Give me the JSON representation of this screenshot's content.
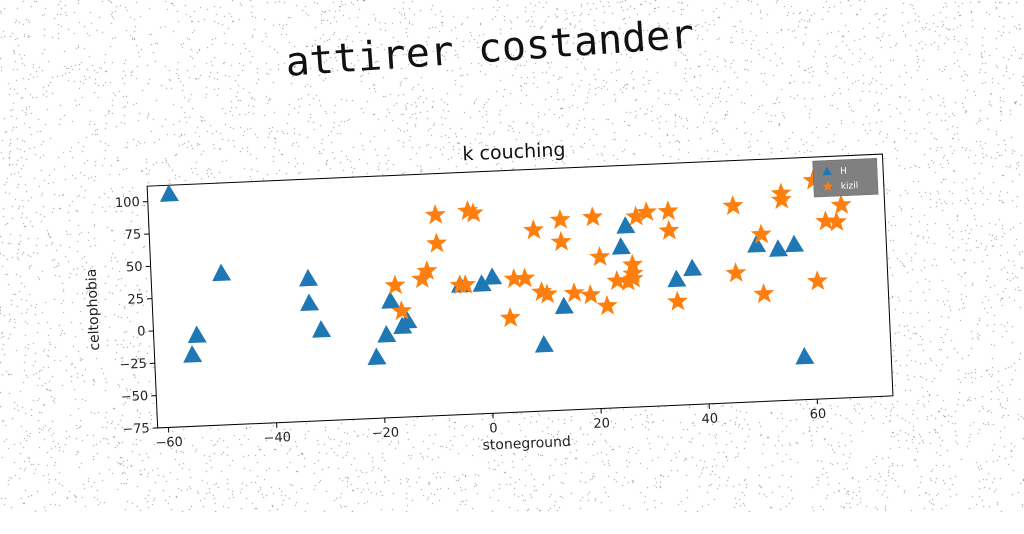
{
  "main_title": "attirer costander",
  "colors": {
    "series_1": "#1f77b4",
    "series_2": "#ff7f0e",
    "legend_bg": "#808080"
  },
  "chart_data": {
    "type": "scatter",
    "title": "k couching",
    "xlabel": "stoneground",
    "ylabel": "celtophobia",
    "xlim": [
      -62,
      74
    ],
    "ylim": [
      -75,
      112
    ],
    "xticks": [
      -60,
      -40,
      -20,
      0,
      20,
      40,
      60
    ],
    "yticks": [
      -75,
      -50,
      -25,
      0,
      25,
      50,
      75,
      100
    ],
    "legend_position": "top-right",
    "series": [
      {
        "name": "H",
        "marker": "triangle",
        "color": "#1f77b4",
        "points": [
          [
            -58,
            105
          ],
          [
            -55,
            -20
          ],
          [
            -54,
            -5
          ],
          [
            -49,
            42
          ],
          [
            -33,
            35
          ],
          [
            -33,
            16
          ],
          [
            -31,
            -5
          ],
          [
            -21,
            -28
          ],
          [
            -19,
            -11
          ],
          [
            -18,
            15
          ],
          [
            -16,
            -5
          ],
          [
            -15,
            -1
          ],
          [
            -5,
            25
          ],
          [
            -1,
            25
          ],
          [
            1,
            30
          ],
          [
            10,
            -24
          ],
          [
            14,
            5
          ],
          [
            25,
            49
          ],
          [
            26,
            65
          ],
          [
            35,
            22
          ],
          [
            38,
            30
          ],
          [
            50,
            46
          ],
          [
            54,
            42
          ],
          [
            57,
            45
          ],
          [
            58,
            -42
          ]
        ]
      },
      {
        "name": "kizil",
        "marker": "star",
        "color": "#ff7f0e",
        "points": [
          [
            -17,
            27
          ],
          [
            -16,
            7
          ],
          [
            -12,
            31
          ],
          [
            -11,
            37
          ],
          [
            -9,
            58
          ],
          [
            -9,
            80
          ],
          [
            -5,
            25
          ],
          [
            -4,
            25
          ],
          [
            -3,
            82
          ],
          [
            -2,
            80
          ],
          [
            4,
            -2
          ],
          [
            5,
            28
          ],
          [
            7,
            28
          ],
          [
            9,
            65
          ],
          [
            10,
            17
          ],
          [
            11,
            15
          ],
          [
            14,
            72
          ],
          [
            14,
            55
          ],
          [
            16,
            15
          ],
          [
            19,
            13
          ],
          [
            20,
            73
          ],
          [
            21,
            42
          ],
          [
            22,
            4
          ],
          [
            24,
            23
          ],
          [
            26,
            22
          ],
          [
            27,
            35
          ],
          [
            27,
            28
          ],
          [
            27,
            24
          ],
          [
            28,
            72
          ],
          [
            30,
            75
          ],
          [
            34,
            75
          ],
          [
            34,
            60
          ],
          [
            35,
            5
          ],
          [
            46,
            77
          ],
          [
            46,
            25
          ],
          [
            51,
            54
          ],
          [
            51,
            8
          ],
          [
            55,
            85
          ],
          [
            55,
            80
          ],
          [
            61,
            94
          ],
          [
            61,
            16
          ],
          [
            63,
            62
          ],
          [
            65,
            61
          ],
          [
            66,
            74
          ]
        ]
      }
    ]
  }
}
